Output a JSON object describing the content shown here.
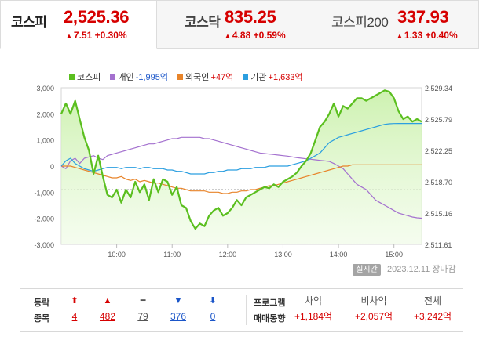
{
  "tabs": [
    {
      "name": "코스피",
      "value": "2,525.36",
      "arrow": "▲",
      "change": "7.51 +0.30%"
    },
    {
      "name": "코스닥",
      "value": "835.25",
      "arrow": "▲",
      "change": "4.88 +0.59%"
    },
    {
      "name": "코스피200",
      "value": "337.93",
      "arrow": "▲",
      "change": "1.33 +0.40%"
    }
  ],
  "legend": [
    {
      "name": "코스피",
      "value": "",
      "color": "#5bbf1f",
      "tone": "pos"
    },
    {
      "name": "개인",
      "value": "-1,995억",
      "color": "#a471cf",
      "tone": "neg"
    },
    {
      "name": "외국인",
      "value": "+47억",
      "color": "#e8842a",
      "tone": "pos"
    },
    {
      "name": "기관",
      "value": "+1,633억",
      "color": "#2b9fe0",
      "tone": "pos"
    }
  ],
  "chart_data": {
    "type": "line",
    "x_ticks": [
      "10:00",
      "11:00",
      "12:00",
      "13:00",
      "14:00",
      "15:00"
    ],
    "left_axis": {
      "ticks": [
        "3,000",
        "2,000",
        "1,000",
        "0",
        "-1,000",
        "-2,000",
        "-3,000"
      ],
      "range": [
        -3000,
        3000
      ]
    },
    "right_axis": {
      "ticks": [
        "2,529.34",
        "2,525.79",
        "2,522.25",
        "2,518.70",
        "2,515.16",
        "2,511.61"
      ],
      "range": [
        2511.61,
        2529.34
      ]
    },
    "reference_level": -900,
    "x": [
      "09:00",
      "09:05",
      "09:10",
      "09:15",
      "09:20",
      "09:25",
      "09:30",
      "09:35",
      "09:40",
      "09:45",
      "09:50",
      "09:55",
      "10:00",
      "10:05",
      "10:10",
      "10:15",
      "10:20",
      "10:25",
      "10:30",
      "10:35",
      "10:40",
      "10:45",
      "10:50",
      "10:55",
      "11:00",
      "11:05",
      "11:10",
      "11:15",
      "11:20",
      "11:25",
      "11:30",
      "11:35",
      "11:40",
      "11:45",
      "11:50",
      "11:55",
      "12:00",
      "12:05",
      "12:10",
      "12:15",
      "12:20",
      "12:25",
      "12:30",
      "12:35",
      "12:40",
      "12:45",
      "12:50",
      "12:55",
      "13:00",
      "13:05",
      "13:10",
      "13:15",
      "13:20",
      "13:25",
      "13:30",
      "13:35",
      "13:40",
      "13:45",
      "13:50",
      "13:55",
      "14:00",
      "14:05",
      "14:10",
      "14:15",
      "14:20",
      "14:25",
      "14:30",
      "14:35",
      "14:40",
      "14:45",
      "14:50",
      "14:55",
      "15:00",
      "15:05",
      "15:10",
      "15:15",
      "15:20",
      "15:25",
      "15:30"
    ],
    "series": [
      {
        "name": "코스피",
        "color": "#5bbf1f",
        "axis": "left",
        "fill": true,
        "values": [
          2000,
          2400,
          2000,
          2500,
          1800,
          1100,
          600,
          -300,
          400,
          -400,
          -1100,
          -1200,
          -900,
          -1400,
          -900,
          -1200,
          -600,
          -1000,
          -700,
          -1300,
          -500,
          -1000,
          -500,
          -600,
          -1100,
          -800,
          -1500,
          -1600,
          -2100,
          -2400,
          -2200,
          -2300,
          -1900,
          -1700,
          -1600,
          -1900,
          -1800,
          -1600,
          -1300,
          -1500,
          -1200,
          -1100,
          -1000,
          -900,
          -800,
          -850,
          -700,
          -800,
          -600,
          -500,
          -400,
          -250,
          0,
          200,
          500,
          1000,
          1500,
          1700,
          2000,
          2400,
          1900,
          2300,
          2200,
          2400,
          2600,
          2600,
          2500,
          2600,
          2700,
          2800,
          2900,
          2850,
          2600,
          2100,
          1800,
          1900,
          1700,
          1800,
          1700
        ]
      },
      {
        "name": "개인",
        "color": "#a471cf",
        "axis": "left",
        "fill": false,
        "values": [
          0,
          -100,
          200,
          300,
          100,
          300,
          350,
          400,
          300,
          250,
          400,
          450,
          500,
          550,
          600,
          650,
          700,
          750,
          800,
          850,
          850,
          900,
          950,
          1000,
          1050,
          1050,
          1100,
          1100,
          1100,
          1100,
          1100,
          1050,
          1050,
          1000,
          950,
          900,
          850,
          800,
          750,
          700,
          650,
          600,
          550,
          500,
          480,
          460,
          440,
          420,
          400,
          380,
          350,
          320,
          300,
          280,
          260,
          240,
          220,
          200,
          180,
          100,
          0,
          -100,
          -300,
          -500,
          -700,
          -800,
          -900,
          -1100,
          -1300,
          -1400,
          -1500,
          -1600,
          -1700,
          -1800,
          -1850,
          -1900,
          -1950,
          -1980,
          -1995
        ]
      },
      {
        "name": "외국인",
        "color": "#e8842a",
        "axis": "left",
        "fill": false,
        "values": [
          0,
          0,
          0,
          -50,
          -100,
          -150,
          -200,
          -250,
          -300,
          -350,
          -400,
          -450,
          -450,
          -400,
          -500,
          -550,
          -500,
          -600,
          -550,
          -600,
          -650,
          -650,
          -700,
          -750,
          -800,
          -850,
          -850,
          -900,
          -950,
          -950,
          -950,
          -950,
          -1000,
          -1000,
          -1000,
          -1050,
          -1050,
          -1000,
          -1000,
          -950,
          -950,
          -900,
          -900,
          -850,
          -800,
          -750,
          -750,
          -700,
          -650,
          -600,
          -550,
          -500,
          -450,
          -400,
          -350,
          -300,
          -250,
          -200,
          -150,
          -100,
          -50,
          0,
          0,
          50,
          50,
          50,
          47,
          47,
          47,
          47,
          47,
          47,
          47,
          47,
          47,
          47,
          47,
          47,
          47
        ]
      },
      {
        "name": "기관",
        "color": "#2b9fe0",
        "axis": "left",
        "fill": false,
        "values": [
          0,
          200,
          300,
          100,
          0,
          -100,
          -150,
          -200,
          -150,
          -100,
          -50,
          -50,
          -50,
          -100,
          -50,
          -50,
          -50,
          -100,
          -50,
          -50,
          -100,
          -100,
          -100,
          -150,
          -150,
          -200,
          -200,
          -250,
          -300,
          -300,
          -300,
          -300,
          -250,
          -250,
          -200,
          -200,
          -150,
          -150,
          -150,
          -100,
          -100,
          -100,
          -50,
          -50,
          -50,
          0,
          0,
          0,
          0,
          0,
          50,
          100,
          150,
          200,
          300,
          400,
          500,
          700,
          900,
          1000,
          1100,
          1150,
          1200,
          1250,
          1300,
          1350,
          1400,
          1450,
          1500,
          1550,
          1600,
          1620,
          1630,
          1633,
          1633,
          1633,
          1633,
          1633,
          1633
        ]
      }
    ]
  },
  "footer": {
    "badge": "실시간",
    "timestamp": "2023.12.11 장마감"
  },
  "stats": {
    "label_line1": "등락",
    "label_line2": "종목",
    "columns": [
      {
        "symbol": "⬆",
        "value": "4",
        "tone": "red",
        "key": "upper-limit"
      },
      {
        "symbol": "▲",
        "value": "482",
        "tone": "red",
        "key": "rise"
      },
      {
        "symbol": "━",
        "value": "79",
        "tone": "gray",
        "key": "unchanged"
      },
      {
        "symbol": "▼",
        "value": "376",
        "tone": "blue",
        "key": "fall"
      },
      {
        "symbol": "⬇",
        "value": "0",
        "tone": "blue",
        "key": "lower-limit"
      }
    ],
    "program_label_line1": "프로그램",
    "program_label_line2": "매매동향",
    "program": [
      {
        "head": "차익",
        "value": "+1,184억"
      },
      {
        "head": "비차익",
        "value": "+2,057억"
      },
      {
        "head": "전체",
        "value": "+3,242억"
      }
    ]
  }
}
